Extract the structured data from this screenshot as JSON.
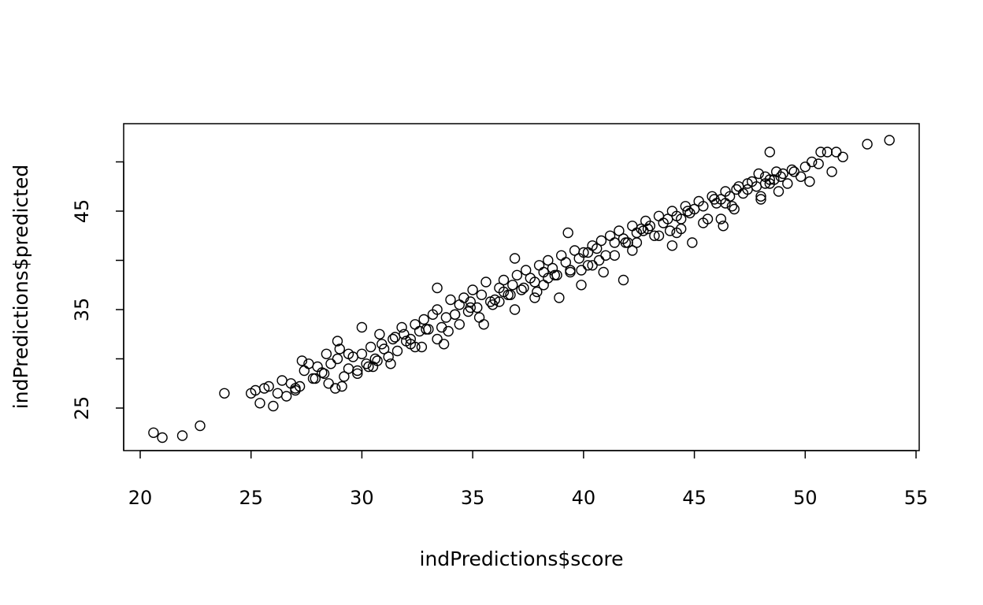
{
  "chart_data": {
    "type": "scatter",
    "title": "",
    "xlabel": "indPredictions$score",
    "ylabel": "indPredictions$predicted",
    "xlim": [
      20,
      55
    ],
    "ylim": [
      21,
      52
    ],
    "xticks": [
      20,
      25,
      30,
      35,
      40,
      45,
      50,
      55
    ],
    "yticks": [
      20,
      25,
      30,
      35,
      40,
      45,
      50
    ],
    "ytick_labels": [
      "",
      "25",
      "",
      "35",
      "",
      "45",
      ""
    ],
    "marker": "open-circle",
    "grid": false,
    "legend": "none",
    "x": [
      20.6,
      21.0,
      21.9,
      22.7,
      23.8,
      25.0,
      25.2,
      25.4,
      25.6,
      25.8,
      26.0,
      26.2,
      26.4,
      26.6,
      26.8,
      27.0,
      27.2,
      27.4,
      27.6,
      27.8,
      28.0,
      28.2,
      28.4,
      28.6,
      28.8,
      29.0,
      29.2,
      29.4,
      29.6,
      29.8,
      30.0,
      30.2,
      30.4,
      30.6,
      30.8,
      31.0,
      31.2,
      31.4,
      31.6,
      31.8,
      32.0,
      32.2,
      32.4,
      32.6,
      32.8,
      33.0,
      33.2,
      33.4,
      33.6,
      33.8,
      34.0,
      34.2,
      34.4,
      34.6,
      34.8,
      35.0,
      35.2,
      35.4,
      35.6,
      35.8,
      36.0,
      36.2,
      36.4,
      36.6,
      36.8,
      37.0,
      37.2,
      37.4,
      37.6,
      37.8,
      38.0,
      38.2,
      38.4,
      38.6,
      38.8,
      39.0,
      39.2,
      39.4,
      39.6,
      39.8,
      40.0,
      40.2,
      40.4,
      40.6,
      40.8,
      41.0,
      41.2,
      41.4,
      41.6,
      41.8,
      42.0,
      42.2,
      42.4,
      42.6,
      42.8,
      43.0,
      43.2,
      43.4,
      43.6,
      43.8,
      44.0,
      44.2,
      44.4,
      44.6,
      44.8,
      45.0,
      45.2,
      45.4,
      45.6,
      45.8,
      46.0,
      46.2,
      46.4,
      46.6,
      46.8,
      47.0,
      47.2,
      47.4,
      47.6,
      47.8,
      48.0,
      48.2,
      48.4,
      48.6,
      48.8,
      49.0,
      49.2,
      49.5,
      49.8,
      50.0,
      50.3,
      50.6,
      51.0,
      51.4,
      51.7,
      52.8,
      53.8,
      27.3,
      27.9,
      28.3,
      28.9,
      29.4,
      29.8,
      30.3,
      30.9,
      31.3,
      31.9,
      32.4,
      32.9,
      33.4,
      33.9,
      34.4,
      34.9,
      35.3,
      35.9,
      36.4,
      36.9,
      37.3,
      37.9,
      38.4,
      38.9,
      39.4,
      39.9,
      40.4,
      40.9,
      41.4,
      41.9,
      42.4,
      42.9,
      43.4,
      43.9,
      44.4,
      44.9,
      45.4,
      45.9,
      46.4,
      46.9,
      47.4,
      47.9,
      48.4,
      48.9,
      49.4,
      33.4,
      36.9,
      39.3,
      48.4,
      28.9,
      30.0,
      31.5,
      33.7,
      35.5,
      37.8,
      39.9,
      41.8,
      44.0,
      46.3,
      48.0,
      50.2,
      29.1,
      30.5,
      32.7,
      34.9,
      36.7,
      38.7,
      40.7,
      42.7,
      44.7,
      46.7,
      48.7,
      50.7,
      27.0,
      28.5,
      30.7,
      32.2,
      34.2,
      36.2,
      38.2,
      40.2,
      42.2,
      44.2,
      46.2,
      48.2,
      51.2
    ],
    "y": [
      22.5,
      22.0,
      22.2,
      23.2,
      26.5,
      26.5,
      26.8,
      25.5,
      27.0,
      27.2,
      25.2,
      26.5,
      27.8,
      26.2,
      27.5,
      26.8,
      27.2,
      28.8,
      29.5,
      28.0,
      29.2,
      28.6,
      30.5,
      29.5,
      27.0,
      31.0,
      28.2,
      29.0,
      30.2,
      28.5,
      30.5,
      29.5,
      31.2,
      30.0,
      32.5,
      31.0,
      30.2,
      32.0,
      30.8,
      33.2,
      31.8,
      32.0,
      33.5,
      32.8,
      34.0,
      33.0,
      34.5,
      35.0,
      33.2,
      34.2,
      36.0,
      34.5,
      35.5,
      36.2,
      34.8,
      37.0,
      35.2,
      36.5,
      37.8,
      35.8,
      36.0,
      37.2,
      38.0,
      36.5,
      37.5,
      38.5,
      37.0,
      39.0,
      38.2,
      37.8,
      39.5,
      38.8,
      40.0,
      39.2,
      38.5,
      40.5,
      39.8,
      39.0,
      41.0,
      40.2,
      40.8,
      39.5,
      41.5,
      41.2,
      42.0,
      40.5,
      42.5,
      41.8,
      43.0,
      42.2,
      41.8,
      43.5,
      42.8,
      43.2,
      44.0,
      43.5,
      42.5,
      44.5,
      43.8,
      44.2,
      45.0,
      44.5,
      43.2,
      45.5,
      44.8,
      45.2,
      46.0,
      45.5,
      44.2,
      46.5,
      45.8,
      46.2,
      47.0,
      46.5,
      45.2,
      47.5,
      46.8,
      47.2,
      48.0,
      47.5,
      46.5,
      48.5,
      47.8,
      48.2,
      47.0,
      48.8,
      47.8,
      49.0,
      48.5,
      49.5,
      50.0,
      49.8,
      51.0,
      51.0,
      50.5,
      51.8,
      52.2,
      29.8,
      28.0,
      28.5,
      30.0,
      30.5,
      28.8,
      29.2,
      31.5,
      29.5,
      32.5,
      31.2,
      33.0,
      32.0,
      32.8,
      33.5,
      35.2,
      34.2,
      35.5,
      36.8,
      35.0,
      37.2,
      36.8,
      38.2,
      36.2,
      38.8,
      39.0,
      39.5,
      38.8,
      40.5,
      41.8,
      41.8,
      43.2,
      42.5,
      43.0,
      44.2,
      41.8,
      43.8,
      46.2,
      45.8,
      47.2,
      47.8,
      48.8,
      48.2,
      48.5,
      49.2,
      37.2,
      40.2,
      42.8,
      51.0,
      31.8,
      33.2,
      32.2,
      31.5,
      33.5,
      36.2,
      37.5,
      38.0,
      41.5,
      43.5,
      46.2,
      48.0,
      27.2,
      29.2,
      31.2,
      35.8,
      36.5,
      38.5,
      40.0,
      43.0,
      45.0,
      45.5,
      49.0,
      51.0,
      27.0,
      27.5,
      29.8,
      31.5,
      34.5,
      35.8,
      37.5,
      40.8,
      41.0,
      42.8,
      44.2,
      47.8,
      49.0
    ]
  }
}
